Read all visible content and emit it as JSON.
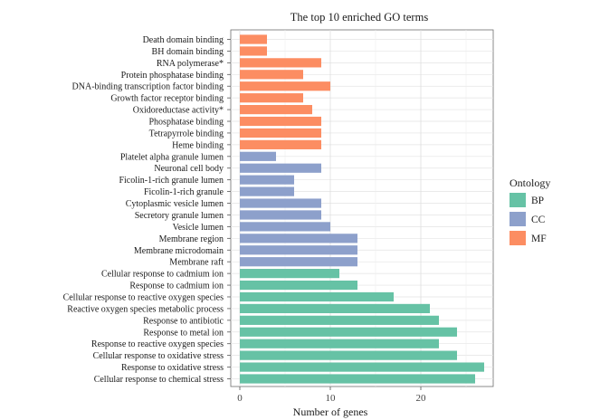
{
  "chart_data": {
    "type": "bar",
    "orientation": "horizontal",
    "title": "The top 10 enriched GO terms",
    "xlabel": "Number of genes",
    "ylabel": "",
    "xlim": [
      -1,
      28
    ],
    "xticks": [
      0,
      10,
      20
    ],
    "grid": true,
    "legend": {
      "title": "Ontology",
      "position": "right",
      "entries": [
        {
          "name": "BP",
          "color": "#66C2A5"
        },
        {
          "name": "CC",
          "color": "#8DA0CB"
        },
        {
          "name": "MF",
          "color": "#FC8D62"
        }
      ]
    },
    "bars": [
      {
        "label": "Death domain binding",
        "value": 3,
        "ontology": "MF"
      },
      {
        "label": "BH domain binding",
        "value": 3,
        "ontology": "MF"
      },
      {
        "label": "RNA polymerase*",
        "value": 9,
        "ontology": "MF"
      },
      {
        "label": "Protein phosphatase binding",
        "value": 7,
        "ontology": "MF"
      },
      {
        "label": "DNA-binding transcription factor binding",
        "value": 10,
        "ontology": "MF"
      },
      {
        "label": "Growth factor receptor binding",
        "value": 7,
        "ontology": "MF"
      },
      {
        "label": "Oxidoreductase activity*",
        "value": 8,
        "ontology": "MF"
      },
      {
        "label": "Phosphatase binding",
        "value": 9,
        "ontology": "MF"
      },
      {
        "label": "Tetrapyrrole binding",
        "value": 9,
        "ontology": "MF"
      },
      {
        "label": "Heme binding",
        "value": 9,
        "ontology": "MF"
      },
      {
        "label": "Platelet alpha granule lumen",
        "value": 4,
        "ontology": "CC"
      },
      {
        "label": "Neuronal cell body",
        "value": 9,
        "ontology": "CC"
      },
      {
        "label": "Ficolin-1-rich granule lumen",
        "value": 6,
        "ontology": "CC"
      },
      {
        "label": "Ficolin-1-rich granule",
        "value": 6,
        "ontology": "CC"
      },
      {
        "label": "Cytoplasmic vesicle lumen",
        "value": 9,
        "ontology": "CC"
      },
      {
        "label": "Secretory granule lumen",
        "value": 9,
        "ontology": "CC"
      },
      {
        "label": "Vesicle lumen",
        "value": 10,
        "ontology": "CC"
      },
      {
        "label": "Membrane region",
        "value": 13,
        "ontology": "CC"
      },
      {
        "label": "Membrane microdomain",
        "value": 13,
        "ontology": "CC"
      },
      {
        "label": "Membrane raft",
        "value": 13,
        "ontology": "CC"
      },
      {
        "label": "Cellular response to cadmium ion",
        "value": 11,
        "ontology": "BP"
      },
      {
        "label": "Response to cadmium ion",
        "value": 13,
        "ontology": "BP"
      },
      {
        "label": "Cellular response to reactive oxygen species",
        "value": 17,
        "ontology": "BP"
      },
      {
        "label": "Reactive oxygen species metabolic process",
        "value": 21,
        "ontology": "BP"
      },
      {
        "label": "Response to antibiotic",
        "value": 22,
        "ontology": "BP"
      },
      {
        "label": "Response to metal ion",
        "value": 24,
        "ontology": "BP"
      },
      {
        "label": "Response to reactive oxygen species",
        "value": 22,
        "ontology": "BP"
      },
      {
        "label": "Cellular response to oxidative stress",
        "value": 24,
        "ontology": "BP"
      },
      {
        "label": "Response to oxidative stress",
        "value": 27,
        "ontology": "BP"
      },
      {
        "label": "Cellular response to chemical stress",
        "value": 26,
        "ontology": "BP"
      }
    ]
  }
}
